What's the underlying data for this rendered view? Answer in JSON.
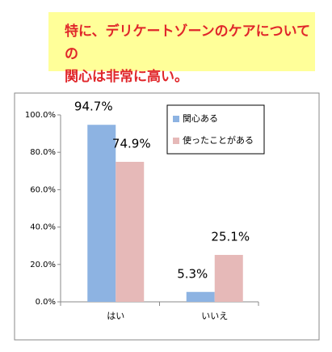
{
  "header": {
    "lines": [
      "特に、デリケートゾーンのケアについての",
      "関心は非常に高い。"
    ]
  },
  "chart_data": {
    "type": "bar",
    "categories": [
      "はい",
      "いいえ"
    ],
    "series": [
      {
        "name": "関心ある",
        "color": "#8db3e2",
        "values": [
          94.7,
          5.3
        ],
        "value_labels": [
          "94.7%",
          "5.3%"
        ]
      },
      {
        "name": "使ったことがある",
        "color": "#e6b9b8",
        "values": [
          74.9,
          25.1
        ],
        "value_labels": [
          "74.9%",
          "25.1%"
        ]
      }
    ],
    "ylim": [
      0,
      100
    ],
    "yticks": [
      {
        "value": 0,
        "label": "0.0%"
      },
      {
        "value": 20,
        "label": "20.0%"
      },
      {
        "value": 40,
        "label": "40.0%"
      },
      {
        "value": 60,
        "label": "60.0%"
      },
      {
        "value": 80,
        "label": "80.0%"
      },
      {
        "value": 100,
        "label": "100.0%"
      }
    ],
    "legend": "upper right",
    "grid": false
  }
}
